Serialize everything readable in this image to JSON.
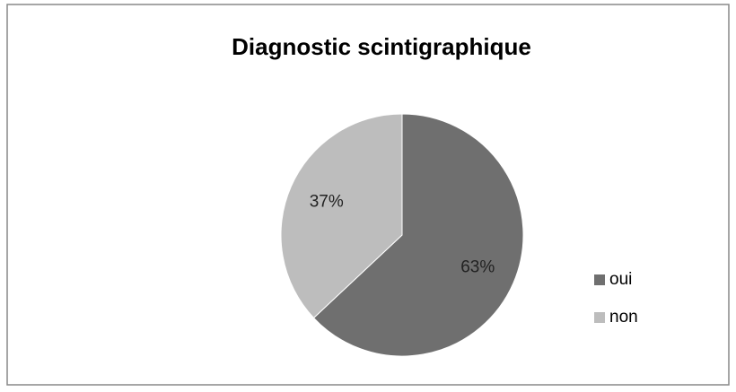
{
  "chart_data": {
    "type": "pie",
    "title": "Diagnostic scintigraphique",
    "categories": [
      "oui",
      "non"
    ],
    "values": [
      63,
      37
    ],
    "value_labels": [
      "63%",
      "37%"
    ],
    "colors": [
      "#6f6f6f",
      "#bdbdbd"
    ],
    "legend": "right"
  }
}
